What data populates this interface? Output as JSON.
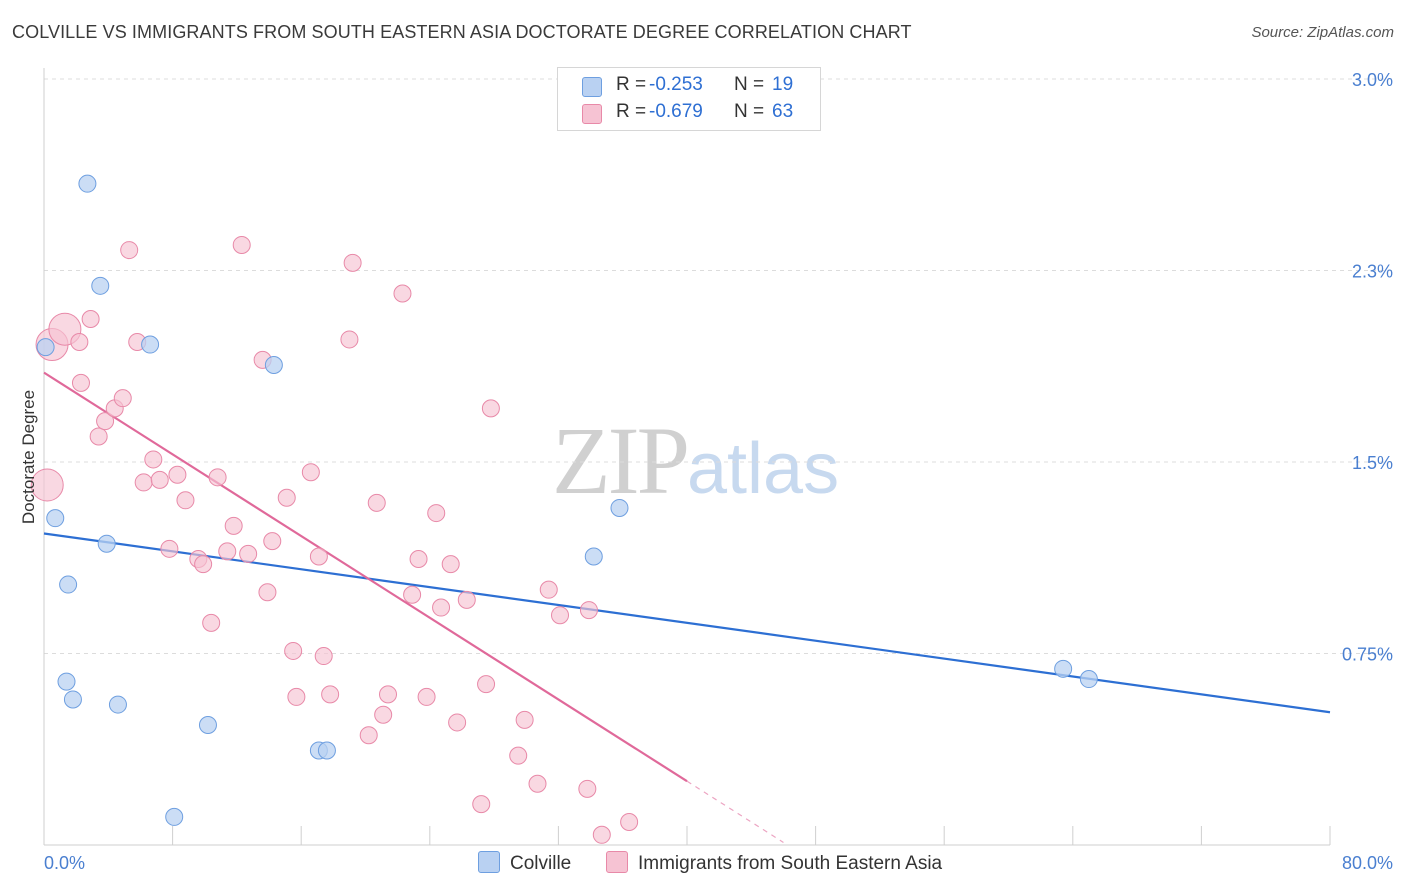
{
  "header": {
    "title": "COLVILLE VS IMMIGRANTS FROM SOUTH EASTERN ASIA DOCTORATE DEGREE CORRELATION CHART",
    "source": "Source: ZipAtlas.com"
  },
  "watermark": {
    "zip": "ZIP",
    "atlas": "atlas"
  },
  "legend": {
    "colville": {
      "r_label": "R =",
      "r_value": "-0.253",
      "n_label": "N =",
      "n_value": "19"
    },
    "immigrants": {
      "r_label": "R =",
      "r_value": "-0.679",
      "n_label": "N =",
      "n_value": "63"
    }
  },
  "bottom_legend": {
    "colville": "Colville",
    "immigrants": "Immigrants from South Eastern Asia"
  },
  "chart_data": {
    "type": "scatter",
    "title": "COLVILLE VS IMMIGRANTS FROM SOUTH EASTERN ASIA DOCTORATE DEGREE CORRELATION CHART",
    "xlabel": "",
    "ylabel": "Doctorate Degree",
    "xlim": [
      0,
      80
    ],
    "ylim": [
      0,
      3.0
    ],
    "x_tick_labels": [
      "0.0%",
      "80.0%"
    ],
    "y_ticks": [
      0.75,
      1.5,
      2.25,
      3.0
    ],
    "y_tick_labels": [
      "0.75%",
      "1.5%",
      "2.3%",
      "3.0%"
    ],
    "grid": true,
    "legend_placement": "top-center",
    "colors": {
      "colville": "#6e9fe0",
      "colville_fill": "#b9d1f2",
      "colville_line": "#2d6fd3",
      "immigrants": "#e889a8",
      "immigrants_fill": "#f6c3d3",
      "immigrants_line": "#e0699a"
    },
    "series": [
      {
        "name": "Colville",
        "points": [
          {
            "x": 0.1,
            "y": 1.95
          },
          {
            "x": 0.7,
            "y": 1.28
          },
          {
            "x": 2.7,
            "y": 2.59
          },
          {
            "x": 3.5,
            "y": 2.19
          },
          {
            "x": 1.5,
            "y": 1.02
          },
          {
            "x": 3.9,
            "y": 1.18
          },
          {
            "x": 6.6,
            "y": 1.96
          },
          {
            "x": 14.3,
            "y": 1.88
          },
          {
            "x": 1.4,
            "y": 0.64
          },
          {
            "x": 1.8,
            "y": 0.57
          },
          {
            "x": 4.6,
            "y": 0.55
          },
          {
            "x": 10.2,
            "y": 0.47
          },
          {
            "x": 17.1,
            "y": 0.37
          },
          {
            "x": 17.6,
            "y": 0.37
          },
          {
            "x": 8.1,
            "y": 0.11
          },
          {
            "x": 34.2,
            "y": 1.13
          },
          {
            "x": 35.8,
            "y": 1.32
          },
          {
            "x": 63.4,
            "y": 0.69
          },
          {
            "x": 65.0,
            "y": 0.65
          }
        ],
        "trendline": {
          "x": [
            0,
            80
          ],
          "y": [
            1.22,
            0.52
          ]
        }
      },
      {
        "name": "Immigrants from South Eastern Asia",
        "points": [
          {
            "x": 0.2,
            "y": 1.41,
            "size": "large"
          },
          {
            "x": 0.5,
            "y": 1.96,
            "size": "large"
          },
          {
            "x": 1.3,
            "y": 2.02,
            "size": "large"
          },
          {
            "x": 2.2,
            "y": 1.97
          },
          {
            "x": 2.3,
            "y": 1.81
          },
          {
            "x": 2.9,
            "y": 2.06
          },
          {
            "x": 3.4,
            "y": 1.6
          },
          {
            "x": 3.8,
            "y": 1.66
          },
          {
            "x": 4.4,
            "y": 1.71
          },
          {
            "x": 4.9,
            "y": 1.75
          },
          {
            "x": 5.3,
            "y": 2.33
          },
          {
            "x": 5.8,
            "y": 1.97
          },
          {
            "x": 6.2,
            "y": 1.42
          },
          {
            "x": 6.8,
            "y": 1.51
          },
          {
            "x": 7.2,
            "y": 1.43
          },
          {
            "x": 7.8,
            "y": 1.16
          },
          {
            "x": 8.3,
            "y": 1.45
          },
          {
            "x": 8.8,
            "y": 1.35
          },
          {
            "x": 9.6,
            "y": 1.12
          },
          {
            "x": 9.9,
            "y": 1.1
          },
          {
            "x": 10.4,
            "y": 0.87
          },
          {
            "x": 10.8,
            "y": 1.44
          },
          {
            "x": 11.4,
            "y": 1.15
          },
          {
            "x": 11.8,
            "y": 1.25
          },
          {
            "x": 12.3,
            "y": 2.35
          },
          {
            "x": 12.7,
            "y": 1.14
          },
          {
            "x": 13.6,
            "y": 1.9
          },
          {
            "x": 13.9,
            "y": 0.99
          },
          {
            "x": 14.2,
            "y": 1.19
          },
          {
            "x": 15.1,
            "y": 1.36
          },
          {
            "x": 15.5,
            "y": 0.76
          },
          {
            "x": 15.7,
            "y": 0.58
          },
          {
            "x": 16.6,
            "y": 1.46
          },
          {
            "x": 17.1,
            "y": 1.13
          },
          {
            "x": 17.4,
            "y": 0.74
          },
          {
            "x": 17.8,
            "y": 0.59
          },
          {
            "x": 19.0,
            "y": 1.98
          },
          {
            "x": 19.2,
            "y": 2.28
          },
          {
            "x": 20.2,
            "y": 0.43
          },
          {
            "x": 20.7,
            "y": 1.34
          },
          {
            "x": 21.1,
            "y": 0.51
          },
          {
            "x": 21.4,
            "y": 0.59
          },
          {
            "x": 22.3,
            "y": 2.16
          },
          {
            "x": 22.9,
            "y": 0.98
          },
          {
            "x": 23.3,
            "y": 1.12
          },
          {
            "x": 23.8,
            "y": 0.58
          },
          {
            "x": 24.4,
            "y": 1.3
          },
          {
            "x": 24.7,
            "y": 0.93
          },
          {
            "x": 25.3,
            "y": 1.1
          },
          {
            "x": 25.7,
            "y": 0.48
          },
          {
            "x": 26.3,
            "y": 0.96
          },
          {
            "x": 27.2,
            "y": 0.16
          },
          {
            "x": 27.5,
            "y": 0.63
          },
          {
            "x": 27.8,
            "y": 1.71
          },
          {
            "x": 29.5,
            "y": 0.35
          },
          {
            "x": 29.9,
            "y": 0.49
          },
          {
            "x": 30.7,
            "y": 0.24
          },
          {
            "x": 31.4,
            "y": 1.0
          },
          {
            "x": 32.1,
            "y": 0.9
          },
          {
            "x": 33.8,
            "y": 0.22
          },
          {
            "x": 33.9,
            "y": 0.92
          },
          {
            "x": 34.7,
            "y": 0.04
          },
          {
            "x": 36.4,
            "y": 0.09
          }
        ],
        "trendline": {
          "x": [
            0,
            40
          ],
          "y": [
            1.85,
            0.25
          ]
        },
        "trendline_extension": {
          "x": [
            40,
            46
          ],
          "y": [
            0.25,
            0.01
          ]
        }
      }
    ]
  }
}
